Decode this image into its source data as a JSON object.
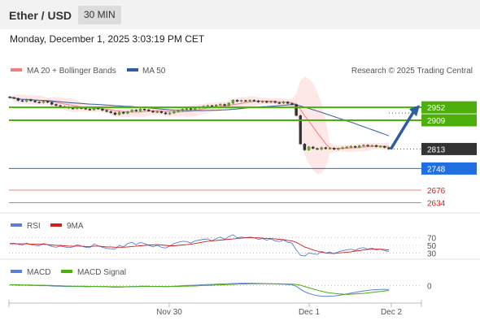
{
  "header": {
    "pair": "Ether / USD",
    "interval": "30 MIN",
    "datetime": "Monday, December 1, 2025 3:03:19 PM CET"
  },
  "legend": {
    "ma20": "MA 20 + Bollinger Bands",
    "ma50": "MA 50",
    "credit": "Research © 2025 Trading Central",
    "rsi": "RSI",
    "rsi_ma": "9MA",
    "macd": "MACD",
    "macd_signal": "MACD Signal"
  },
  "colors": {
    "ma20": "#f08080",
    "ma50": "#2f5e9e",
    "bollinger_fill": "#fde4e4",
    "resistance": "#4caf0a",
    "pivot": "#1f6fe0",
    "support": "#e06060",
    "last": "#333333",
    "arrow": "#2f5e9e",
    "rsi": "#5b7fd6",
    "rsi_ma": "#d11e1e",
    "macd": "#5b7fd6",
    "macd_signal": "#4caf0a"
  },
  "chart_data": [
    {
      "type": "candlestick",
      "panel": "price",
      "x_ticks": [
        "Nov 30",
        "Dec 1",
        "Dec 2"
      ],
      "ylim": [
        2600,
        3050
      ],
      "close": [
        2985,
        2982,
        2975,
        2972,
        2978,
        2974,
        2970,
        2968,
        2972,
        2969,
        2962,
        2958,
        2955,
        2953,
        2950,
        2948,
        2951,
        2949,
        2946,
        2944,
        2950,
        2947,
        2942,
        2938,
        2934,
        2928,
        2936,
        2932,
        2938,
        2943,
        2940,
        2946,
        2944,
        2940,
        2936,
        2938,
        2934,
        2930,
        2933,
        2938,
        2942,
        2946,
        2948,
        2945,
        2950,
        2953,
        2956,
        2958,
        2955,
        2960,
        2962,
        2958,
        2966,
        2976,
        2972,
        2975,
        2973,
        2976,
        2974,
        2970,
        2972,
        2969,
        2972,
        2968,
        2966,
        2970,
        2965,
        2962,
        2925,
        2830,
        2810,
        2820,
        2815,
        2812,
        2818,
        2814,
        2816,
        2812,
        2815,
        2818,
        2820,
        2822,
        2819,
        2824,
        2826,
        2823,
        2825,
        2821,
        2822,
        2818,
        2813
      ],
      "levels": [
        {
          "value": 2952,
          "label": "2952",
          "kind": "resistance"
        },
        {
          "value": 2909,
          "label": "2909",
          "kind": "resistance"
        },
        {
          "value": 2813,
          "label": "2813",
          "kind": "last"
        },
        {
          "value": 2748,
          "label": "2748",
          "kind": "pivot"
        },
        {
          "value": 2676,
          "label": "2676",
          "kind": "support"
        },
        {
          "value": 2634,
          "label": "2634",
          "kind": "support"
        }
      ],
      "series": [
        {
          "name": "MA 20 + Bollinger Bands"
        },
        {
          "name": "MA 50"
        }
      ],
      "legend_position": "top-left"
    },
    {
      "type": "line",
      "panel": "rsi",
      "ylim": [
        20,
        80
      ],
      "y_ticks": [
        {
          "value": 70,
          "label": "70"
        },
        {
          "value": 50,
          "label": "50"
        },
        {
          "value": 30,
          "label": "30"
        }
      ],
      "series": [
        {
          "name": "RSI",
          "values": [
            55,
            56,
            53,
            51,
            56,
            52,
            50,
            49,
            55,
            52,
            47,
            45,
            48,
            46,
            44,
            46,
            52,
            48,
            45,
            44,
            54,
            49,
            45,
            42,
            41,
            40,
            50,
            46,
            55,
            58,
            52,
            58,
            55,
            50,
            46,
            50,
            45,
            43,
            48,
            55,
            58,
            61,
            60,
            56,
            62,
            64,
            66,
            67,
            62,
            68,
            72,
            66,
            73,
            78,
            70,
            72,
            70,
            72,
            70,
            66,
            68,
            64,
            67,
            62,
            60,
            64,
            58,
            56,
            38,
            24,
            22,
            30,
            28,
            26,
            34,
            30,
            32,
            28,
            33,
            36,
            38,
            40,
            37,
            42,
            44,
            40,
            43,
            38,
            40,
            36,
            34
          ]
        },
        {
          "name": "9MA",
          "values": [
            54,
            54,
            54,
            54,
            54,
            53,
            53,
            53,
            53,
            52,
            51,
            50,
            50,
            49,
            48,
            48,
            48,
            48,
            47,
            47,
            48,
            48,
            47,
            46,
            46,
            45,
            45,
            45,
            46,
            47,
            48,
            49,
            50,
            51,
            51,
            52,
            51,
            50,
            49,
            49,
            50,
            51,
            52,
            53,
            55,
            57,
            59,
            61,
            62,
            63,
            64,
            65,
            66,
            67,
            68,
            69,
            70,
            70,
            70,
            70,
            69,
            68,
            68,
            67,
            66,
            65,
            63,
            62,
            58,
            52,
            46,
            42,
            38,
            35,
            32,
            30,
            29,
            29,
            30,
            31,
            32,
            33,
            35,
            36,
            38,
            39,
            40,
            40,
            40,
            39,
            38
          ]
        }
      ]
    },
    {
      "type": "line",
      "panel": "macd",
      "y_ticks": [
        {
          "value": 0,
          "label": "0"
        }
      ],
      "ylim": [
        -60,
        25
      ],
      "series": [
        {
          "name": "MACD",
          "values": [
            3,
            3,
            2,
            2,
            2,
            1,
            1,
            0,
            0,
            0,
            -1,
            -2,
            -2,
            -3,
            -3,
            -3,
            -3,
            -3,
            -4,
            -4,
            -3,
            -3,
            -4,
            -4,
            -5,
            -6,
            -5,
            -5,
            -4,
            -3,
            -3,
            -2,
            -2,
            -2,
            -3,
            -3,
            -3,
            -4,
            -3,
            -2,
            -1,
            0,
            1,
            1,
            2,
            3,
            4,
            5,
            5,
            6,
            7,
            7,
            8,
            9,
            9,
            10,
            10,
            10,
            10,
            9,
            9,
            8,
            8,
            7,
            6,
            6,
            5,
            4,
            -2,
            -14,
            -24,
            -31,
            -36,
            -40,
            -42,
            -43,
            -42,
            -41,
            -39,
            -36,
            -33,
            -30,
            -27,
            -24,
            -21,
            -19,
            -17,
            -16,
            -15,
            -15,
            -15
          ]
        },
        {
          "name": "MACD Signal",
          "values": [
            4,
            4,
            4,
            3,
            3,
            3,
            2,
            2,
            2,
            1,
            1,
            0,
            0,
            -1,
            -1,
            -2,
            -2,
            -2,
            -2,
            -3,
            -3,
            -3,
            -3,
            -3,
            -4,
            -4,
            -4,
            -4,
            -4,
            -4,
            -4,
            -3,
            -3,
            -3,
            -3,
            -3,
            -3,
            -3,
            -3,
            -3,
            -3,
            -2,
            -2,
            -1,
            -1,
            0,
            1,
            1,
            2,
            3,
            3,
            4,
            5,
            5,
            6,
            7,
            7,
            8,
            8,
            8,
            8,
            8,
            8,
            8,
            8,
            7,
            7,
            6,
            5,
            2,
            -3,
            -8,
            -13,
            -18,
            -22,
            -26,
            -29,
            -31,
            -33,
            -34,
            -35,
            -34,
            -33,
            -32,
            -31,
            -29,
            -27,
            -25,
            -23,
            -21,
            -19
          ]
        }
      ]
    }
  ]
}
